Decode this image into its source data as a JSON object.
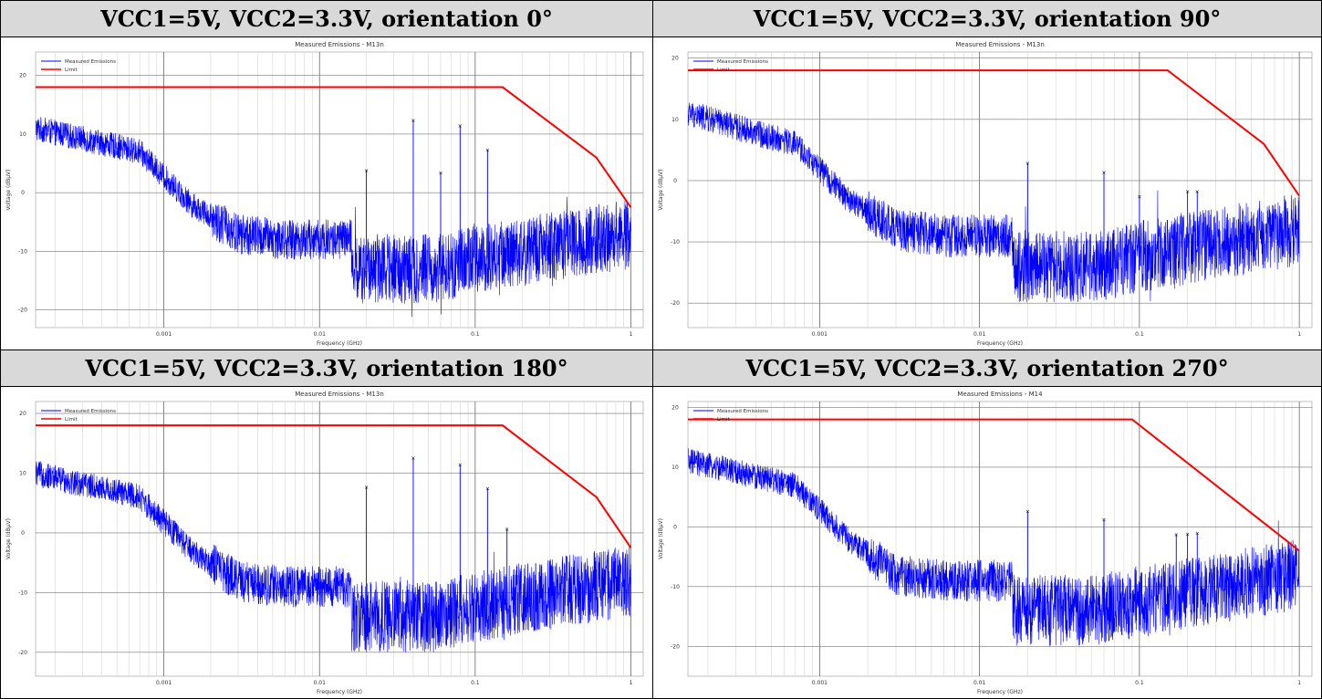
{
  "colors": {
    "emission": "#0000ff",
    "limit": "#ff0000",
    "header_bg": "#d9d9d9"
  },
  "panels": [
    {
      "header": "VCC1=5V, VCC2=3.3V, orientation 0°",
      "chart_data": {
        "type": "line",
        "title": "Measured Emissions - M13n",
        "xlabel": "Frequency (GHz)",
        "ylabel": "Voltage (dBµV)",
        "xscale": "log",
        "xlim": [
          0.00015,
          1.2
        ],
        "ylim": [
          -23,
          24
        ],
        "xticks": [
          {
            "v": 0.001,
            "label": "0.001"
          },
          {
            "v": 0.01,
            "label": "0.01"
          },
          {
            "v": 0.1,
            "label": "0.1"
          },
          {
            "v": 1,
            "label": "1"
          }
        ],
        "yticks": [
          {
            "v": 20,
            "label": "20"
          },
          {
            "v": 10,
            "label": "10"
          },
          {
            "v": 0,
            "label": "0"
          },
          {
            "v": -10,
            "label": "-10"
          },
          {
            "v": -20,
            "label": "-20"
          }
        ],
        "grid": true,
        "legend": {
          "position": "top-left",
          "entries": [
            "Measured Emissions",
            "Limit"
          ]
        },
        "limit": {
          "name": "Limit",
          "x": [
            0.00015,
            0.15,
            0.6,
            1.0
          ],
          "y": [
            18,
            18,
            6,
            -2.5
          ]
        },
        "emission_envelope": {
          "name": "Measured Emissions",
          "x": [
            0.00015,
            0.0007,
            0.0015,
            0.003,
            0.006,
            0.016,
            0.0161,
            0.05,
            0.2,
            1.0
          ],
          "y": [
            11,
            7,
            -2,
            -7,
            -8,
            -8,
            -13,
            -13,
            -10,
            -7
          ]
        },
        "peaks": [
          {
            "f": 0.02,
            "v": 3.8
          },
          {
            "f": 0.04,
            "v": 12.3
          },
          {
            "f": 0.06,
            "v": 3.4
          },
          {
            "f": 0.08,
            "v": 11.4
          },
          {
            "f": 0.12,
            "v": 7.3
          }
        ]
      }
    },
    {
      "header": "VCC1=5V, VCC2=3.3V, orientation 90°",
      "chart_data": {
        "type": "line",
        "title": "Measured Emissions - M13n",
        "xlabel": "Frequency (GHz)",
        "ylabel": "Voltage (dBµV)",
        "xscale": "log",
        "xlim": [
          0.00015,
          1.2
        ],
        "ylim": [
          -24,
          21
        ],
        "xticks": [
          {
            "v": 0.001,
            "label": "0.001"
          },
          {
            "v": 0.01,
            "label": "0.01"
          },
          {
            "v": 0.1,
            "label": "0.1"
          },
          {
            "v": 1,
            "label": "1"
          }
        ],
        "yticks": [
          {
            "v": 20,
            "label": "20"
          },
          {
            "v": 10,
            "label": "10"
          },
          {
            "v": 0,
            "label": "0"
          },
          {
            "v": -10,
            "label": "-10"
          },
          {
            "v": -20,
            "label": "-20"
          }
        ],
        "grid": true,
        "legend": {
          "position": "top-left",
          "entries": [
            "Measured Emissions",
            "Limit"
          ]
        },
        "limit": {
          "name": "Limit",
          "x": [
            0.00015,
            0.15,
            0.6,
            1.0
          ],
          "y": [
            18,
            18,
            6,
            -2.5
          ]
        },
        "emission_envelope": {
          "name": "Measured Emissions",
          "x": [
            0.00015,
            0.0007,
            0.0015,
            0.003,
            0.006,
            0.016,
            0.0161,
            0.05,
            0.2,
            1.0
          ],
          "y": [
            11,
            6,
            -3,
            -8,
            -9,
            -9,
            -14,
            -14,
            -11,
            -8
          ]
        },
        "peaks": [
          {
            "f": 0.02,
            "v": 2.8
          },
          {
            "f": 0.06,
            "v": 1.3
          },
          {
            "f": 0.1,
            "v": -2.6
          },
          {
            "f": 0.2,
            "v": -1.8
          },
          {
            "f": 0.23,
            "v": -1.8
          }
        ]
      }
    },
    {
      "header": "VCC1=5V, VCC2=3.3V, orientation 180°",
      "chart_data": {
        "type": "line",
        "title": "Measured Emissions - M13n",
        "xlabel": "Frequency (GHz)",
        "ylabel": "Voltage (dBµV)",
        "xscale": "log",
        "xlim": [
          0.00015,
          1.2
        ],
        "ylim": [
          -24,
          22
        ],
        "xticks": [
          {
            "v": 0.001,
            "label": "0.001"
          },
          {
            "v": 0.01,
            "label": "0.01"
          },
          {
            "v": 0.1,
            "label": "0.1"
          },
          {
            "v": 1,
            "label": "1"
          }
        ],
        "yticks": [
          {
            "v": 20,
            "label": "20"
          },
          {
            "v": 10,
            "label": "10"
          },
          {
            "v": 0,
            "label": "0"
          },
          {
            "v": -10,
            "label": "-10"
          },
          {
            "v": -20,
            "label": "-20"
          }
        ],
        "grid": true,
        "legend": {
          "position": "top-left",
          "entries": [
            "Measured Emissions",
            "Limit"
          ]
        },
        "limit": {
          "name": "Limit",
          "x": [
            0.00015,
            0.15,
            0.6,
            1.0
          ],
          "y": [
            18,
            18,
            6,
            -2.5
          ]
        },
        "emission_envelope": {
          "name": "Measured Emissions",
          "x": [
            0.00015,
            0.0007,
            0.0015,
            0.003,
            0.006,
            0.016,
            0.0161,
            0.05,
            0.2,
            1.0
          ],
          "y": [
            10,
            6,
            -3,
            -8,
            -9,
            -9,
            -14,
            -14,
            -11,
            -8
          ]
        },
        "peaks": [
          {
            "f": 0.02,
            "v": 7.6
          },
          {
            "f": 0.04,
            "v": 12.5
          },
          {
            "f": 0.08,
            "v": 11.4
          },
          {
            "f": 0.12,
            "v": 7.4
          },
          {
            "f": 0.16,
            "v": 0.6
          }
        ]
      }
    },
    {
      "header": "VCC1=5V, VCC2=3.3V, orientation 270°",
      "chart_data": {
        "type": "line",
        "title": "Measured Emissions - M14",
        "xlabel": "Frequency (GHz)",
        "ylabel": "Voltage (dBµV)",
        "xscale": "log",
        "xlim": [
          0.00015,
          1.2
        ],
        "ylim": [
          -25,
          21
        ],
        "xticks": [
          {
            "v": 0.001,
            "label": "0.001"
          },
          {
            "v": 0.01,
            "label": "0.01"
          },
          {
            "v": 0.1,
            "label": "0.1"
          },
          {
            "v": 1,
            "label": "1"
          }
        ],
        "yticks": [
          {
            "v": 20,
            "label": "20"
          },
          {
            "v": 10,
            "label": "10"
          },
          {
            "v": 0,
            "label": "0"
          },
          {
            "v": -10,
            "label": "-10"
          },
          {
            "v": -20,
            "label": "-20"
          }
        ],
        "grid": true,
        "legend": {
          "position": "top-left",
          "entries": [
            "Measured Emissions",
            "Limit"
          ]
        },
        "limit": {
          "name": "Limit",
          "x": [
            0.00015,
            0.09,
            1.0
          ],
          "y": [
            18,
            18,
            -4
          ]
        },
        "emission_envelope": {
          "name": "Measured Emissions",
          "x": [
            0.00015,
            0.0007,
            0.0015,
            0.003,
            0.006,
            0.016,
            0.0161,
            0.05,
            0.2,
            1.0
          ],
          "y": [
            11,
            7,
            -2,
            -8,
            -9,
            -9,
            -14,
            -14,
            -11,
            -8
          ]
        },
        "peaks": [
          {
            "f": 0.02,
            "v": 2.6
          },
          {
            "f": 0.06,
            "v": 1.2
          },
          {
            "f": 0.17,
            "v": -1.3
          },
          {
            "f": 0.2,
            "v": -1.2
          },
          {
            "f": 0.23,
            "v": -1.1
          }
        ]
      }
    }
  ]
}
